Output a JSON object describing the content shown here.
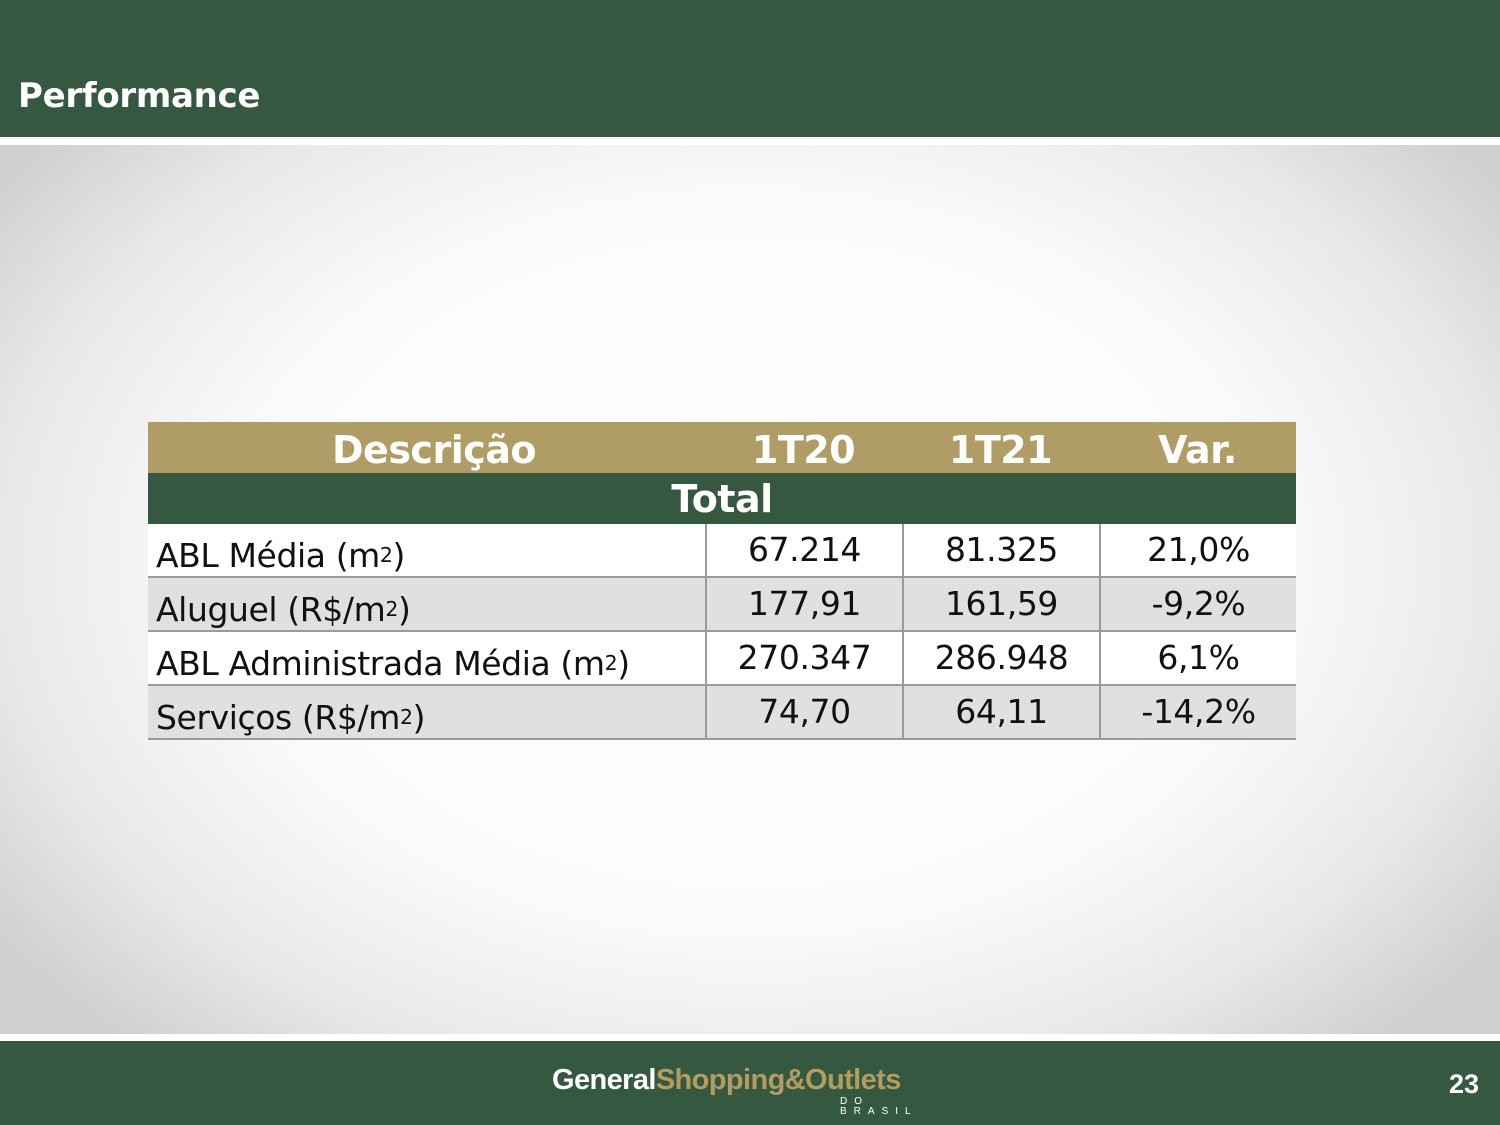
{
  "header": {
    "title": "Performance"
  },
  "table": {
    "columns": [
      "Descrição",
      "1T20",
      "1T21",
      "Var."
    ],
    "section": "Total",
    "rows": [
      {
        "label": "ABL Média (m",
        "sup": "2",
        "suffix": ")",
        "values": [
          "67.214",
          "81.325",
          "21,0%"
        ]
      },
      {
        "label": "Aluguel (R$/m",
        "sup": "2",
        "suffix": ")",
        "values": [
          "177,91",
          "161,59",
          "-9,2%"
        ]
      },
      {
        "label": "ABL Administrada Média (m",
        "sup": "2",
        "suffix": ")",
        "values": [
          "270.347",
          "286.948",
          "6,1%"
        ]
      },
      {
        "label": "Serviços (R$/m",
        "sup": "2",
        "suffix": ")",
        "values": [
          "74,70",
          "64,11",
          "-14,2%"
        ]
      }
    ]
  },
  "footer": {
    "logo_part1": "General",
    "logo_part2": "Shopping&Outlets",
    "logo_sub": "DO BRASIL",
    "page_number": "23"
  },
  "colors": {
    "header_green": "#355840",
    "gold": "#b09c65",
    "row_gray": "#e0e0e0"
  }
}
